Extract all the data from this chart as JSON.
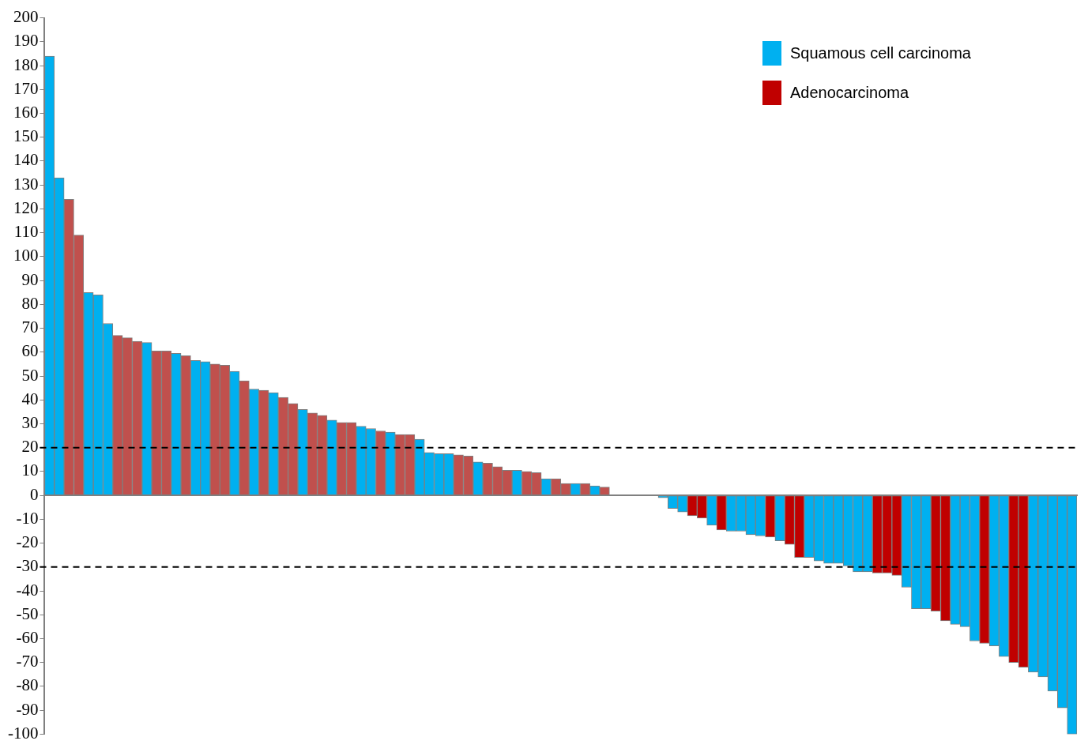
{
  "chart_data": {
    "type": "bar",
    "stacked": true,
    "categories": [
      null,
      null,
      null,
      null,
      null,
      null,
      null,
      null,
      null,
      null,
      null,
      null,
      null,
      null,
      null,
      null,
      null,
      null,
      null,
      null,
      null,
      null,
      null,
      null,
      null,
      null,
      null,
      null,
      null,
      null,
      null,
      null,
      null,
      null,
      null,
      null,
      null,
      null,
      null,
      null,
      null,
      null,
      null,
      null,
      null,
      null,
      null,
      null,
      null,
      null,
      null,
      null,
      null,
      null,
      null,
      null,
      null,
      null,
      null,
      null,
      null,
      null,
      null,
      null,
      null,
      null,
      null,
      null,
      null,
      null,
      null,
      null,
      null,
      null,
      null,
      null,
      null,
      null,
      null,
      null,
      null,
      null,
      null,
      null,
      null,
      null,
      null,
      null,
      null,
      null,
      null,
      null,
      null,
      null,
      null,
      null,
      null,
      null,
      null,
      null,
      null,
      null,
      null,
      null,
      null,
      null
    ],
    "series": [
      {
        "name": "Squamous cell carcinoma",
        "color": "#00b0f0",
        "values": [
          184,
          133,
          null,
          null,
          85,
          84,
          72,
          null,
          null,
          null,
          64,
          null,
          null,
          59.5,
          null,
          56.5,
          56,
          null,
          null,
          52,
          null,
          44.5,
          null,
          43,
          null,
          null,
          36,
          null,
          null,
          31.5,
          null,
          null,
          29,
          28,
          null,
          26.5,
          null,
          null,
          23.5,
          18,
          17.5,
          17.5,
          null,
          null,
          14,
          null,
          null,
          null,
          10.5,
          null,
          null,
          7,
          null,
          null,
          5,
          null,
          4,
          null,
          0,
          0,
          0,
          0,
          0,
          -1,
          -5.5,
          -7,
          null,
          null,
          -12.5,
          null,
          -15,
          -15,
          -16.5,
          -17,
          null,
          -19,
          null,
          null,
          -26,
          -27.5,
          -28.5,
          -28.5,
          -29.5,
          -32,
          -32,
          null,
          null,
          null,
          -38.5,
          -47.5,
          -47.5,
          null,
          null,
          -54,
          -55,
          -61,
          null,
          -63,
          -67.5,
          null,
          null,
          -74,
          -76,
          -82,
          -89,
          -100
        ]
      },
      {
        "name": "Adenocarcinoma",
        "color": "#c00000",
        "values": [
          null,
          null,
          124,
          109,
          null,
          null,
          null,
          67,
          66,
          64.5,
          null,
          60.5,
          60.5,
          null,
          58.5,
          null,
          null,
          55,
          54.5,
          null,
          48,
          null,
          44,
          null,
          41,
          38.5,
          null,
          34.5,
          33.5,
          null,
          30.5,
          30.5,
          null,
          null,
          27,
          null,
          25.5,
          25.5,
          null,
          null,
          null,
          null,
          17,
          16.5,
          null,
          13.5,
          12,
          10.5,
          null,
          10,
          9.5,
          null,
          7,
          5,
          null,
          5,
          null,
          3.5,
          null,
          null,
          null,
          null,
          null,
          null,
          null,
          null,
          -8.5,
          -9.5,
          null,
          -14.5,
          null,
          null,
          null,
          null,
          -17.5,
          null,
          -20.5,
          -26,
          null,
          null,
          null,
          null,
          null,
          null,
          null,
          -32.5,
          -32.5,
          -33.5,
          null,
          null,
          null,
          -48.5,
          -52.5,
          null,
          null,
          null,
          -62,
          null,
          null,
          -70,
          -72,
          null,
          null,
          null,
          null,
          null
        ],
        "colors": [
          null,
          null,
          "#c0504d",
          "#c0504d",
          null,
          null,
          null,
          "#c0504d",
          "#c0504d",
          "#c0504d",
          null,
          "#c0504d",
          "#c0504d",
          null,
          "#c0504d",
          null,
          null,
          "#c0504d",
          "#c0504d",
          null,
          "#c0504d",
          null,
          "#c0504d",
          null,
          "#c0504d",
          "#c0504d",
          null,
          "#c0504d",
          "#c0504d",
          null,
          "#c0504d",
          "#c0504d",
          null,
          null,
          "#c0504d",
          null,
          "#c0504d",
          "#c0504d",
          null,
          null,
          null,
          null,
          "#c0504d",
          "#c0504d",
          null,
          "#c0504d",
          "#c0504d",
          "#c0504d",
          null,
          "#c0504d",
          "#c0504d",
          null,
          "#c0504d",
          "#c0504d",
          null,
          "#c0504d",
          null,
          "#c0504d",
          null,
          null,
          null,
          null,
          null,
          null,
          null,
          null,
          "#c00000",
          "#c00000",
          null,
          "#c00000",
          null,
          null,
          null,
          null,
          "#c00000",
          null,
          "#c00000",
          "#c00000",
          null,
          null,
          null,
          null,
          null,
          null,
          null,
          "#c00000",
          "#c00000",
          "#c00000",
          null,
          null,
          null,
          "#c00000",
          "#c00000",
          null,
          null,
          null,
          "#c00000",
          null,
          null,
          "#c00000",
          "#c00000",
          null,
          null,
          null,
          null,
          null
        ]
      }
    ],
    "ylim": [
      -100,
      200
    ],
    "yticks": [
      -100,
      -90,
      -80,
      -70,
      -60,
      -50,
      -40,
      -30,
      -20,
      -10,
      0,
      10,
      20,
      30,
      40,
      50,
      60,
      70,
      80,
      90,
      100,
      110,
      120,
      130,
      140,
      150,
      160,
      170,
      180,
      190,
      200
    ],
    "tick_labels": "y",
    "grid": false,
    "legend": "top right",
    "ref_lines": [
      {
        "axis": "y",
        "value": 20,
        "color": "#000000",
        "line_style": "dashed"
      },
      {
        "axis": "y",
        "value": -30,
        "color": "#000000",
        "line_style": "dashed"
      }
    ]
  }
}
